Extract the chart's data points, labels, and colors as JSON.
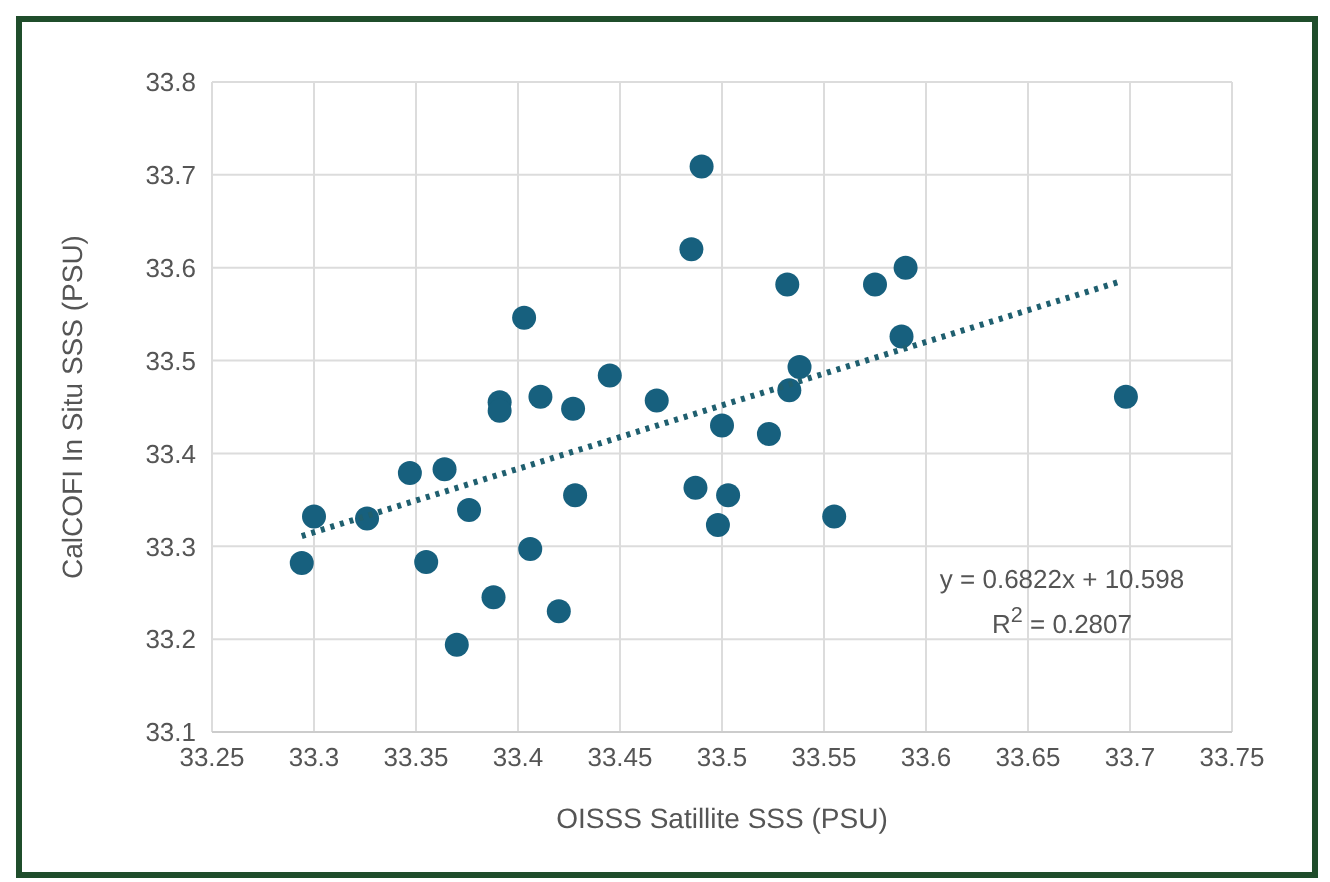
{
  "chart_data": {
    "type": "scatter",
    "xlabel": "OISSS Satillite SSS (PSU)",
    "ylabel": "CalCOFI In Situ SSS (PSU)",
    "xlim": [
      33.25,
      33.75
    ],
    "xticks": [
      33.25,
      33.3,
      33.35,
      33.4,
      33.45,
      33.5,
      33.55,
      33.6,
      33.65,
      33.7,
      33.75
    ],
    "ylim": [
      33.1,
      33.8
    ],
    "yticks": [
      33.1,
      33.2,
      33.3,
      33.4,
      33.5,
      33.6,
      33.7,
      33.8
    ],
    "grid": true,
    "series": [
      {
        "color": "#17607e",
        "marker": "circle",
        "x": [
          33.294,
          33.3,
          33.326,
          33.347,
          33.355,
          33.364,
          33.376,
          33.37,
          33.388,
          33.391,
          33.391,
          33.403,
          33.406,
          33.411,
          33.42,
          33.427,
          33.428,
          33.445,
          33.468,
          33.485,
          33.49,
          33.487,
          33.5,
          33.503,
          33.498,
          33.523,
          33.532,
          33.533,
          33.538,
          33.555,
          33.575,
          33.59,
          33.588,
          33.698
        ],
        "values": [
          33.282,
          33.332,
          33.33,
          33.379,
          33.283,
          33.383,
          33.339,
          33.194,
          33.245,
          33.455,
          33.446,
          33.546,
          33.297,
          33.461,
          33.23,
          33.448,
          33.355,
          33.484,
          33.457,
          33.62,
          33.709,
          33.363,
          33.43,
          33.355,
          33.323,
          33.421,
          33.582,
          33.468,
          33.493,
          33.332,
          33.582,
          33.6,
          33.526,
          33.461
        ]
      },
      {
        "type": "line",
        "color": "#1f5f6f",
        "marker": "none",
        "line_style": "dotted",
        "x": [
          33.294,
          33.695
        ],
        "values": [
          33.311,
          33.585
        ]
      }
    ],
    "annotations": [
      "y = 0.6822x + 10.598",
      "R$^{2}$ = 0.2807"
    ]
  }
}
